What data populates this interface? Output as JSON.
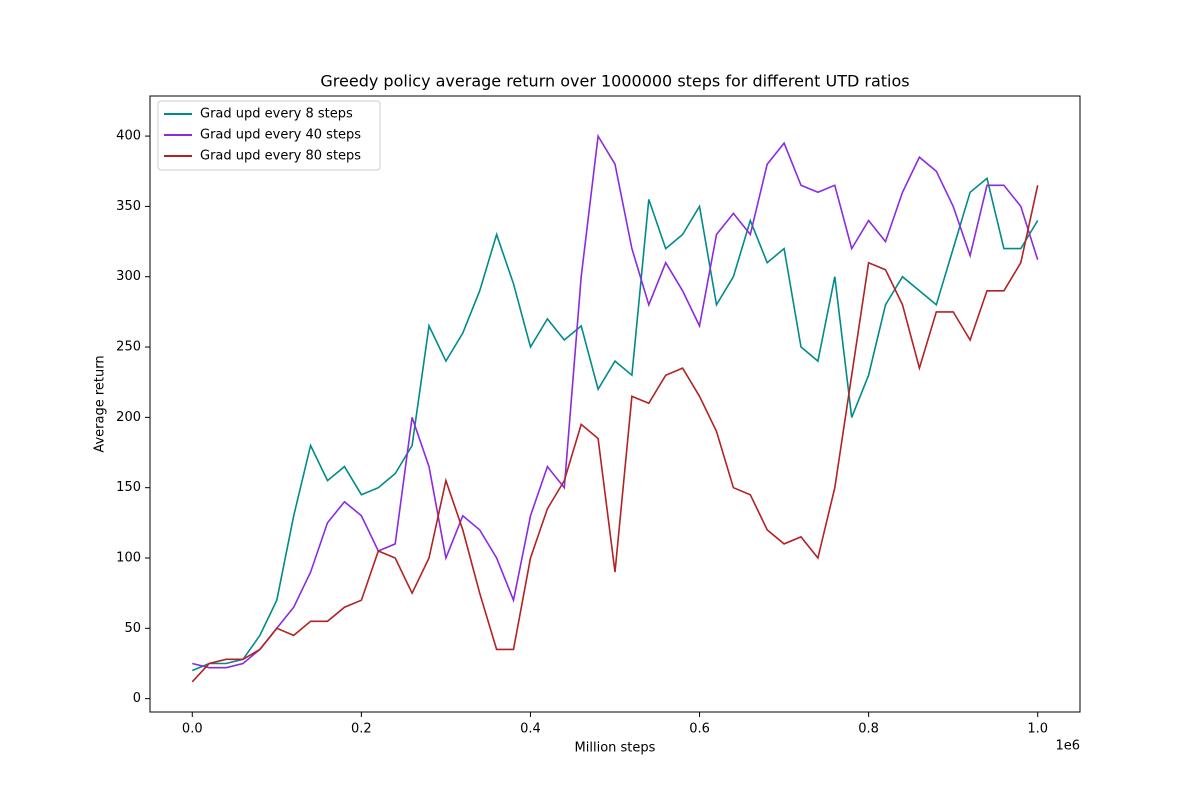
{
  "chart_data": {
    "type": "line",
    "title": "Greedy policy average return over 1000000 steps for different UTD ratios",
    "x_label": "Million steps",
    "y_label": "Average return",
    "x_offset_label": "1e6",
    "x": [
      0,
      20000,
      40000,
      60000,
      80000,
      100000,
      120000,
      140000,
      160000,
      180000,
      200000,
      220000,
      240000,
      260000,
      280000,
      300000,
      320000,
      340000,
      360000,
      380000,
      400000,
      420000,
      440000,
      460000,
      480000,
      500000,
      520000,
      540000,
      560000,
      580000,
      600000,
      620000,
      640000,
      660000,
      680000,
      700000,
      720000,
      740000,
      760000,
      780000,
      800000,
      820000,
      840000,
      860000,
      880000,
      900000,
      920000,
      940000,
      960000,
      980000,
      1000000
    ],
    "series": [
      {
        "name": "Grad upd every 8 steps",
        "color": "#008b8b",
        "values": [
          20,
          25,
          25,
          28,
          45,
          70,
          130,
          180,
          155,
          165,
          145,
          150,
          160,
          180,
          265,
          240,
          260,
          290,
          330,
          295,
          250,
          270,
          255,
          265,
          220,
          240,
          230,
          355,
          320,
          330,
          350,
          280,
          300,
          340,
          310,
          320,
          250,
          240,
          300,
          200,
          230,
          280,
          300,
          290,
          280,
          320,
          360,
          370,
          320,
          320,
          340
        ]
      },
      {
        "name": "Grad upd every 40 steps",
        "color": "#8a2be2",
        "values": [
          25,
          22,
          22,
          25,
          35,
          50,
          65,
          90,
          125,
          140,
          130,
          105,
          110,
          200,
          165,
          100,
          130,
          120,
          100,
          70,
          130,
          165,
          150,
          300,
          400,
          380,
          320,
          280,
          310,
          290,
          265,
          330,
          345,
          330,
          380,
          395,
          365,
          360,
          365,
          320,
          340,
          325,
          360,
          385,
          375,
          350,
          315,
          365,
          365,
          350,
          312
        ]
      },
      {
        "name": "Grad upd every 80 steps",
        "color": "#b22222",
        "values": [
          12,
          25,
          28,
          28,
          35,
          50,
          45,
          55,
          55,
          65,
          70,
          105,
          100,
          75,
          100,
          155,
          120,
          75,
          35,
          35,
          100,
          135,
          155,
          195,
          185,
          90,
          215,
          210,
          230,
          235,
          215,
          190,
          150,
          145,
          120,
          110,
          115,
          100,
          150,
          230,
          310,
          305,
          280,
          235,
          275,
          275,
          255,
          290,
          290,
          310,
          365
        ]
      }
    ],
    "xlim": [
      -50000,
      1050000
    ],
    "ylim": [
      -9.5,
      428.5
    ],
    "xticks": [
      {
        "value": 0,
        "label": "0.0"
      },
      {
        "value": 200000,
        "label": "0.2"
      },
      {
        "value": 400000,
        "label": "0.4"
      },
      {
        "value": 600000,
        "label": "0.6"
      },
      {
        "value": 800000,
        "label": "0.8"
      },
      {
        "value": 1000000,
        "label": "1.0"
      }
    ],
    "yticks": [
      0,
      50,
      100,
      150,
      200,
      250,
      300,
      350,
      400
    ],
    "legend": "upper-left",
    "grid": false
  }
}
